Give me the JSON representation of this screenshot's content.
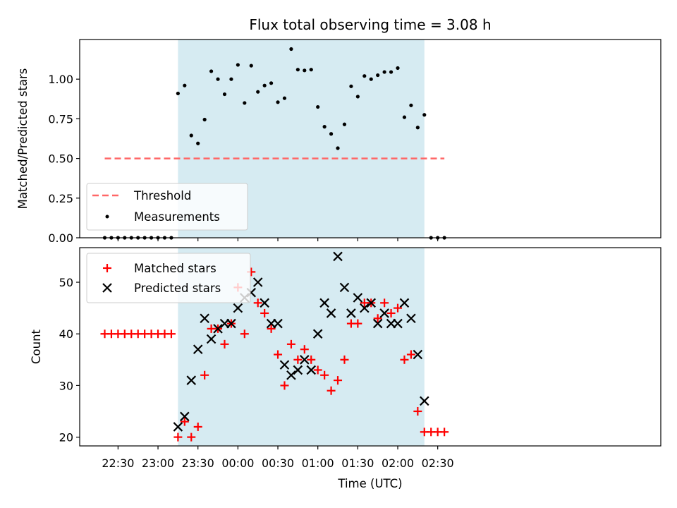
{
  "chart_data": [
    {
      "type": "scatter",
      "panel": "top",
      "title": "Flux total observing time = 3.08 h",
      "ylabel": "Matched/Predicted stars",
      "ylim": [
        0,
        1.25
      ],
      "yticks": [
        0.0,
        0.25,
        0.5,
        0.75,
        1.0
      ],
      "ytick_labels": [
        "0.00",
        "0.25",
        "0.50",
        "0.75",
        "1.00"
      ],
      "shaded_interval": [
        "23:15",
        "02:20"
      ],
      "shade_color": "#add8e6",
      "threshold": {
        "name": "Threshold",
        "value": 0.5,
        "x_range": [
          "22:20",
          "02:35"
        ],
        "color": "#ff6666"
      },
      "series": [
        {
          "name": "Measurements",
          "color": "#000000",
          "x": [
            "22:20",
            "22:25",
            "22:30",
            "22:35",
            "22:40",
            "22:45",
            "22:50",
            "22:55",
            "23:00",
            "23:05",
            "23:10",
            "23:15",
            "23:20",
            "23:25",
            "23:30",
            "23:35",
            "23:40",
            "23:45",
            "23:50",
            "23:55",
            "00:00",
            "00:05",
            "00:10",
            "00:15",
            "00:20",
            "00:25",
            "00:30",
            "00:35",
            "00:40",
            "00:45",
            "00:50",
            "00:55",
            "01:00",
            "01:05",
            "01:10",
            "01:15",
            "01:20",
            "01:25",
            "01:30",
            "01:35",
            "01:40",
            "01:45",
            "01:50",
            "01:55",
            "02:00",
            "02:05",
            "02:10",
            "02:15",
            "02:20",
            "02:25",
            "02:30",
            "02:35"
          ],
          "y": [
            0,
            0,
            0,
            0,
            0,
            0,
            0,
            0,
            0,
            0,
            0,
            0.91,
            0.96,
            0.645,
            0.595,
            0.745,
            1.05,
            1.0,
            0.905,
            1.0,
            1.09,
            0.85,
            1.085,
            0.92,
            0.96,
            0.975,
            0.855,
            0.88,
            1.19,
            1.06,
            1.055,
            1.06,
            0.825,
            0.7,
            0.655,
            0.565,
            0.715,
            0.955,
            0.89,
            1.02,
            1.0,
            1.025,
            1.045,
            1.045,
            1.07,
            0.76,
            0.835,
            0.695,
            0.775,
            0,
            0,
            0
          ]
        }
      ],
      "legend": [
        "Threshold",
        "Measurements"
      ],
      "legend_position": "lower-left"
    },
    {
      "type": "scatter",
      "panel": "bottom",
      "xlabel": "Time (UTC)",
      "ylabel": "Count",
      "ylim": [
        18.3,
        56.7
      ],
      "yticks": [
        20,
        30,
        40,
        50
      ],
      "xticks": [
        "22:30",
        "23:00",
        "23:30",
        "00:00",
        "00:30",
        "01:00",
        "01:30",
        "02:00",
        "02:30"
      ],
      "shaded_interval": [
        "23:15",
        "02:20"
      ],
      "shade_color": "#add8e6",
      "series": [
        {
          "name": "Matched stars",
          "marker": "+",
          "color": "#ff0000",
          "x": [
            "22:20",
            "22:25",
            "22:30",
            "22:35",
            "22:40",
            "22:45",
            "22:50",
            "22:55",
            "23:00",
            "23:05",
            "23:10",
            "23:15",
            "23:20",
            "23:25",
            "23:30",
            "23:35",
            "23:40",
            "23:45",
            "23:50",
            "23:55",
            "00:00",
            "00:05",
            "00:10",
            "00:15",
            "00:20",
            "00:25",
            "00:30",
            "00:35",
            "00:40",
            "00:45",
            "00:50",
            "00:55",
            "01:00",
            "01:05",
            "01:10",
            "01:15",
            "01:20",
            "01:25",
            "01:30",
            "01:35",
            "01:40",
            "01:45",
            "01:50",
            "01:55",
            "02:00",
            "02:05",
            "02:10",
            "02:15",
            "02:20",
            "02:25",
            "02:30",
            "02:35"
          ],
          "y": [
            40,
            40,
            40,
            40,
            40,
            40,
            40,
            40,
            40,
            40,
            40,
            20,
            23,
            20,
            22,
            32,
            41,
            41,
            38,
            42,
            49,
            40,
            52,
            46,
            44,
            41,
            36,
            30,
            38,
            35,
            37,
            35,
            33,
            32,
            29,
            31,
            35,
            42,
            42,
            46,
            46,
            43,
            46,
            44,
            45,
            35,
            36,
            25,
            21,
            21,
            21,
            21
          ]
        },
        {
          "name": "Predicted stars",
          "marker": "x",
          "color": "#000000",
          "x": [
            "23:15",
            "23:20",
            "23:25",
            "23:30",
            "23:35",
            "23:40",
            "23:45",
            "23:50",
            "23:55",
            "00:00",
            "00:05",
            "00:10",
            "00:15",
            "00:20",
            "00:25",
            "00:30",
            "00:35",
            "00:40",
            "00:45",
            "00:50",
            "00:55",
            "01:00",
            "01:05",
            "01:10",
            "01:15",
            "01:20",
            "01:25",
            "01:30",
            "01:35",
            "01:40",
            "01:45",
            "01:50",
            "01:55",
            "02:00",
            "02:05",
            "02:10",
            "02:15",
            "02:20"
          ],
          "y": [
            22,
            24,
            31,
            37,
            43,
            39,
            41,
            42,
            42,
            45,
            47,
            48,
            50,
            46,
            42,
            42,
            34,
            32,
            33,
            35,
            33,
            40,
            46,
            44,
            55,
            49,
            44,
            47,
            45,
            46,
            42,
            44,
            42,
            42,
            46,
            43,
            36,
            27
          ]
        }
      ],
      "legend": [
        "Matched stars",
        "Predicted stars"
      ],
      "legend_position": "upper-left"
    }
  ]
}
